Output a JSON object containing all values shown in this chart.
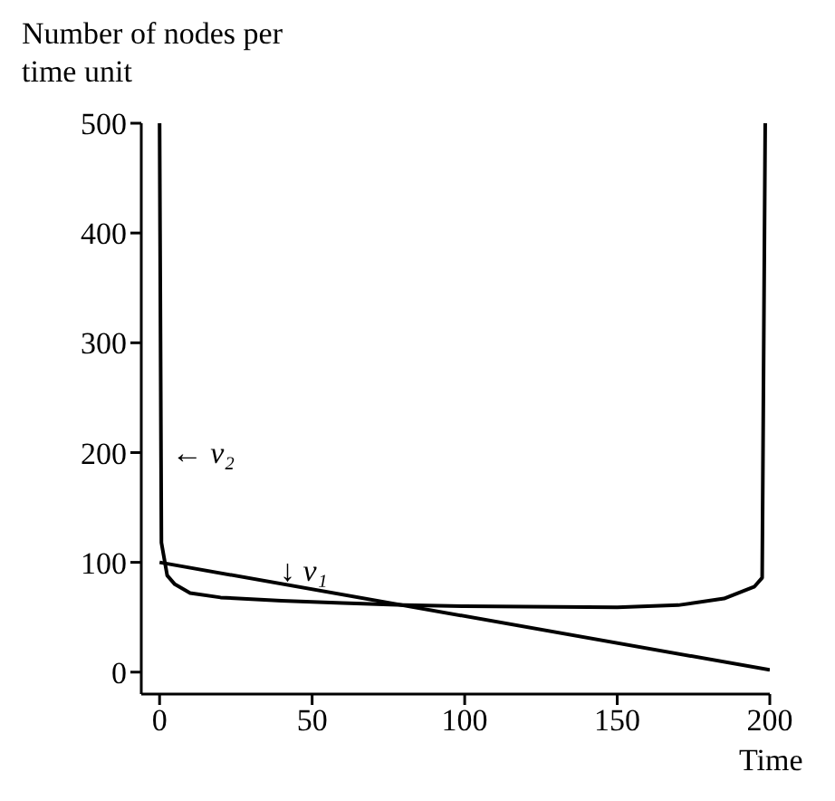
{
  "chart_data": {
    "type": "line",
    "xlabel": "Time",
    "ylabel": "Number of nodes per time unit",
    "xlim": [
      -6,
      200
    ],
    "ylim": [
      -20,
      500
    ],
    "xticks": [
      0,
      50,
      100,
      150,
      200
    ],
    "yticks": [
      0,
      100,
      200,
      300,
      400,
      500
    ],
    "grid": false,
    "legend": false,
    "marker": "none",
    "line_style": "solid",
    "series": [
      {
        "x": [
          0,
          0.6,
          2.5,
          5,
          10,
          20,
          40,
          60,
          80,
          100,
          150,
          170,
          185,
          195,
          197.5,
          198.5
        ],
        "values": [
          500,
          118,
          88,
          80,
          72,
          68,
          65,
          63,
          61,
          60,
          59,
          61,
          67,
          78,
          86,
          500
        ],
        "color": "#000000"
      },
      {
        "x": [
          0,
          200
        ],
        "values": [
          100,
          2
        ],
        "color": "#000000"
      }
    ],
    "annotations": [
      {
        "text": "← ν₂",
        "x": 4,
        "y": 200
      },
      {
        "text": "↓ ν₁",
        "x": 43,
        "y": 83
      }
    ]
  }
}
